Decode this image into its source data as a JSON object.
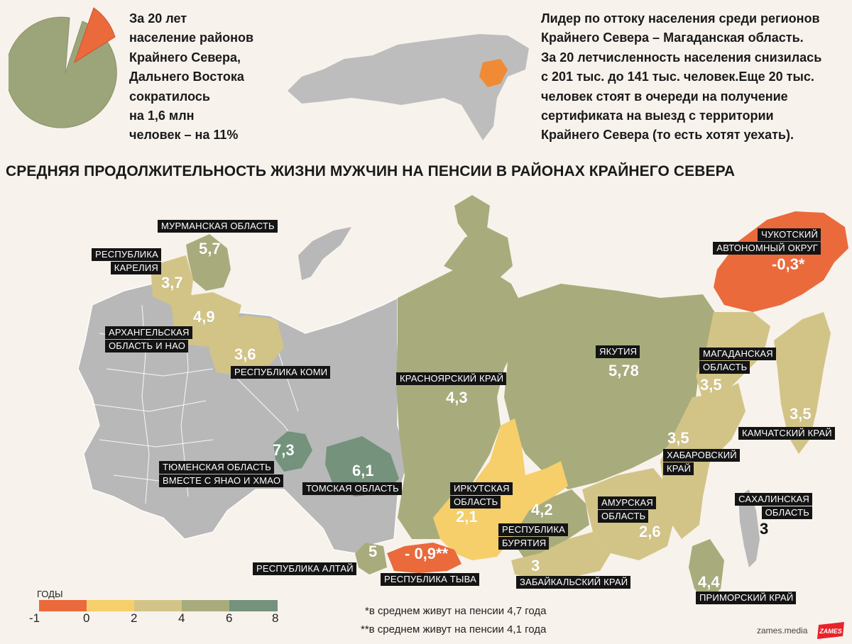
{
  "colors": {
    "background": "#f8f2ec",
    "gray_region": "#b8b8b8",
    "pie_main": "#9ca57a",
    "pie_slice": "#ea6a3c",
    "highlight": "#f08a35",
    "label_bg": "#141414",
    "scale": [
      "#ea6a3c",
      "#f6cf6b",
      "#d2c486",
      "#a8ac7c",
      "#74927c"
    ]
  },
  "intro_left": {
    "lines": [
      "За 20 лет",
      "население районов",
      "Крайнего Севера,",
      "Дальнего Востока",
      "сократилось",
      "на 1,6 млн",
      "человек – на 11%"
    ]
  },
  "pie": {
    "share_percent": 11
  },
  "intro_right": {
    "lines": [
      "Лидер по оттоку населения среди регионов",
      "Крайнего Севера – Магаданская область.",
      "За 20 летчисленность населения снизилась",
      "с 201 тыс. до 141 тыс. человек.Еще 20 тыс.",
      "человек стоят в очереди на получение",
      "сертификата на выезд с территории",
      "Крайнего Севера (то есть хотят уехать)."
    ]
  },
  "title": "СРЕДНЯЯ ПРОДОЛЖИТЕЛЬНОСТЬ ЖИЗНИ МУЖЧИН НА ПЕНСИИ В РАЙОНАХ КРАЙНЕГО СЕВЕРА",
  "regions": {
    "murmansk": {
      "label": [
        "МУРМАНСКАЯ ОБЛАСТЬ"
      ],
      "value": "5,7"
    },
    "karelia": {
      "label": [
        "РЕСПУБЛИКА",
        "КАРЕЛИЯ"
      ],
      "value": "3,7"
    },
    "arkhangelsk": {
      "label": [
        "АРХАНГЕЛЬСКАЯ",
        "ОБЛАСТЬ И НАО"
      ],
      "value": "4,9"
    },
    "komi": {
      "label": [
        "РЕСПУБЛИКА КОМИ"
      ],
      "value": "3,6"
    },
    "tyumen": {
      "label": [
        "ТЮМЕНСКАЯ ОБЛАСТЬ",
        "ВМЕСТЕ С ЯНАО И ХМАО"
      ],
      "value": "7,3"
    },
    "tomsk": {
      "label": [
        "ТОМСКАЯ ОБЛАСТЬ"
      ],
      "value": "6,1"
    },
    "krasnoyarsk": {
      "label": [
        "КРАСНОЯРСКИЙ КРАЙ"
      ],
      "value": "4,3"
    },
    "yakutia": {
      "label": [
        "ЯКУТИЯ"
      ],
      "value": "5,78"
    },
    "chukotka": {
      "label": [
        "ЧУКОТСКИЙ",
        "АВТОНОМНЫЙ ОКРУГ"
      ],
      "value": "-0,3*"
    },
    "magadan": {
      "label": [
        "МАГАДАНСКАЯ",
        "ОБЛАСТЬ"
      ],
      "value": "3,5"
    },
    "kamchatka": {
      "label": [
        "КАМЧАТСКИЙ КРАЙ"
      ],
      "value": "3,5"
    },
    "khabarovsk": {
      "label": [
        "ХАБАРОВСКИЙ",
        "КРАЙ"
      ],
      "value": "3,5"
    },
    "irkutsk": {
      "label": [
        "ИРКУТСКАЯ",
        "ОБЛАСТЬ"
      ],
      "value": "2,1"
    },
    "buryatia": {
      "label": [
        "РЕСПУБЛИКА",
        "БУРЯТИЯ"
      ],
      "value": "4,2"
    },
    "amur": {
      "label": [
        "АМУРСКАЯ",
        "ОБЛАСТЬ"
      ],
      "value": "2,6"
    },
    "sakhalin": {
      "label": [
        "САХАЛИНСКАЯ",
        "ОБЛАСТЬ"
      ],
      "value": "3"
    },
    "altai": {
      "label": [
        "РЕСПУБЛИКА АЛТАЙ"
      ],
      "value": "5"
    },
    "tyva": {
      "label": [
        "РЕСПУБЛИКА ТЫВА"
      ],
      "value": "- 0,9**"
    },
    "zabaikalsky": {
      "label": [
        "ЗАБАЙКАЛЬСКИЙ КРАЙ"
      ],
      "value": "3"
    },
    "primorsky": {
      "label": [
        "ПРИМОРСКИЙ КРАЙ"
      ],
      "value": "4,4"
    }
  },
  "legend": {
    "title": "ГОДЫ",
    "ticks": [
      "-1",
      "0",
      "2",
      "4",
      "6",
      "8"
    ]
  },
  "footnotes": [
    "*в среднем живут на пенсии 4,7 года",
    "**в среднем живут на пенсии 4,1 года"
  ],
  "site": "zames.media",
  "logo_text": "ZAMES"
}
